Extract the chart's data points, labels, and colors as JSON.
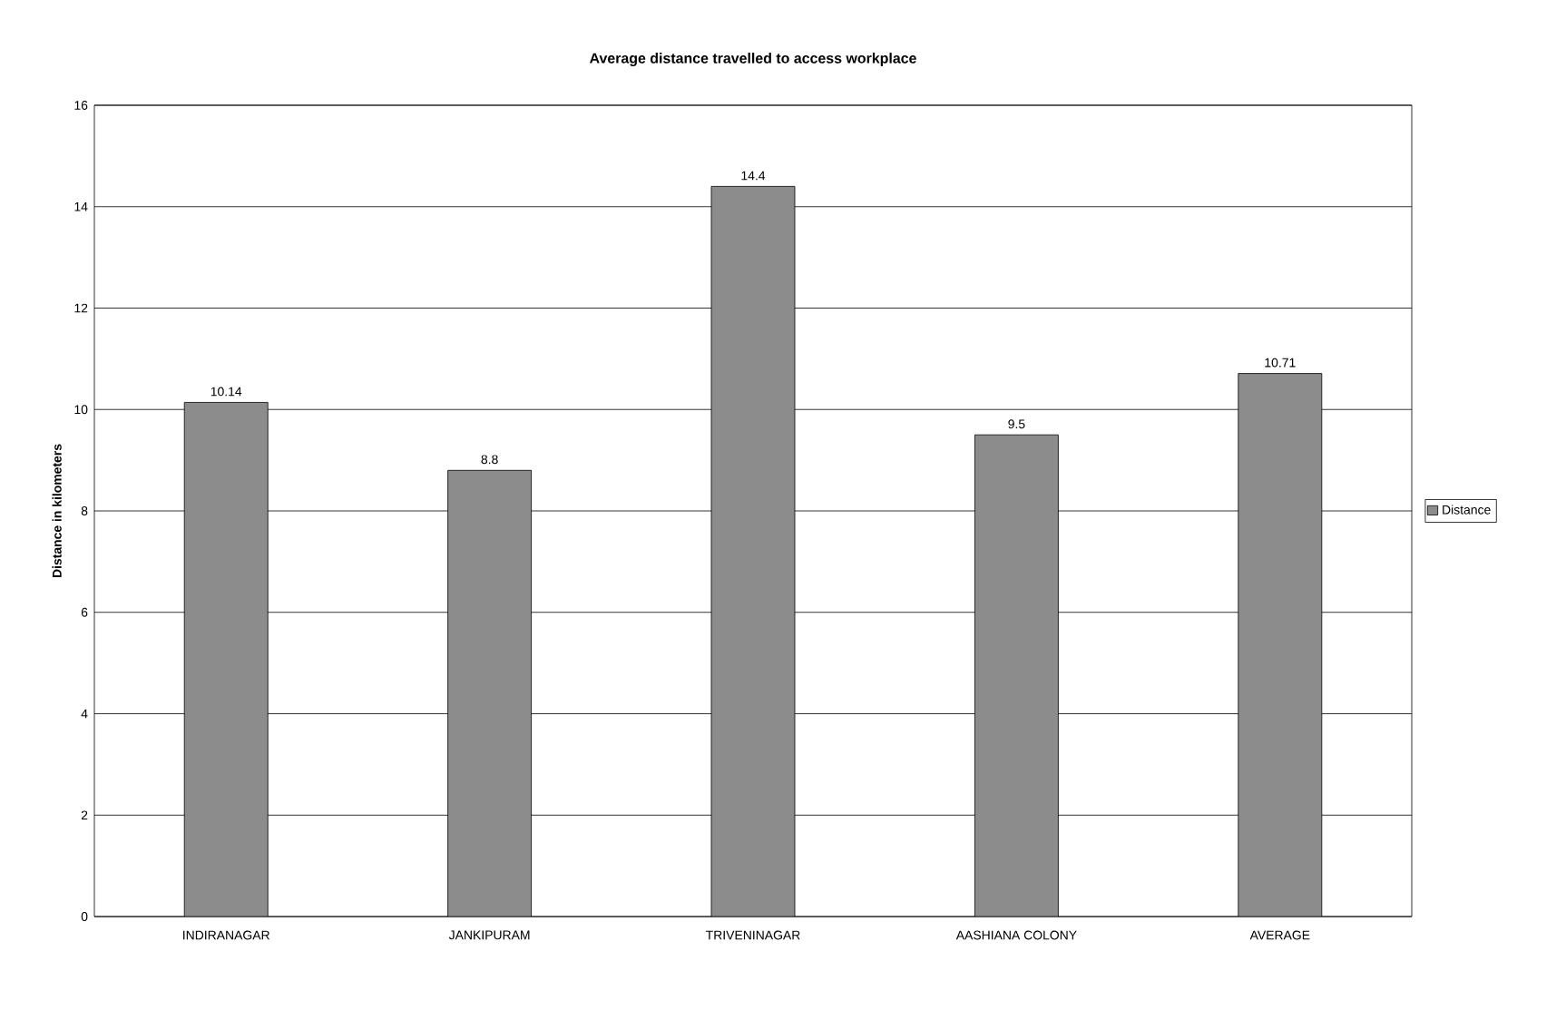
{
  "chart_data": {
    "type": "bar",
    "title": "Average distance travelled to access workplace",
    "ylabel": "Distance in kilometers",
    "categories": [
      "INDIRANAGAR",
      "JANKIPURAM",
      "TRIVENINAGAR",
      "AASHIANA COLONY",
      "AVERAGE"
    ],
    "series": [
      {
        "name": "Distance",
        "color": "#8c8c8c",
        "values": [
          10.14,
          8.8,
          14.4,
          9.5,
          10.71
        ]
      }
    ],
    "ylim": [
      0,
      16
    ],
    "yticks": [
      0,
      2,
      4,
      6,
      8,
      10,
      12,
      14,
      16
    ],
    "grid": "y",
    "legend": "right",
    "data_labels": true
  }
}
